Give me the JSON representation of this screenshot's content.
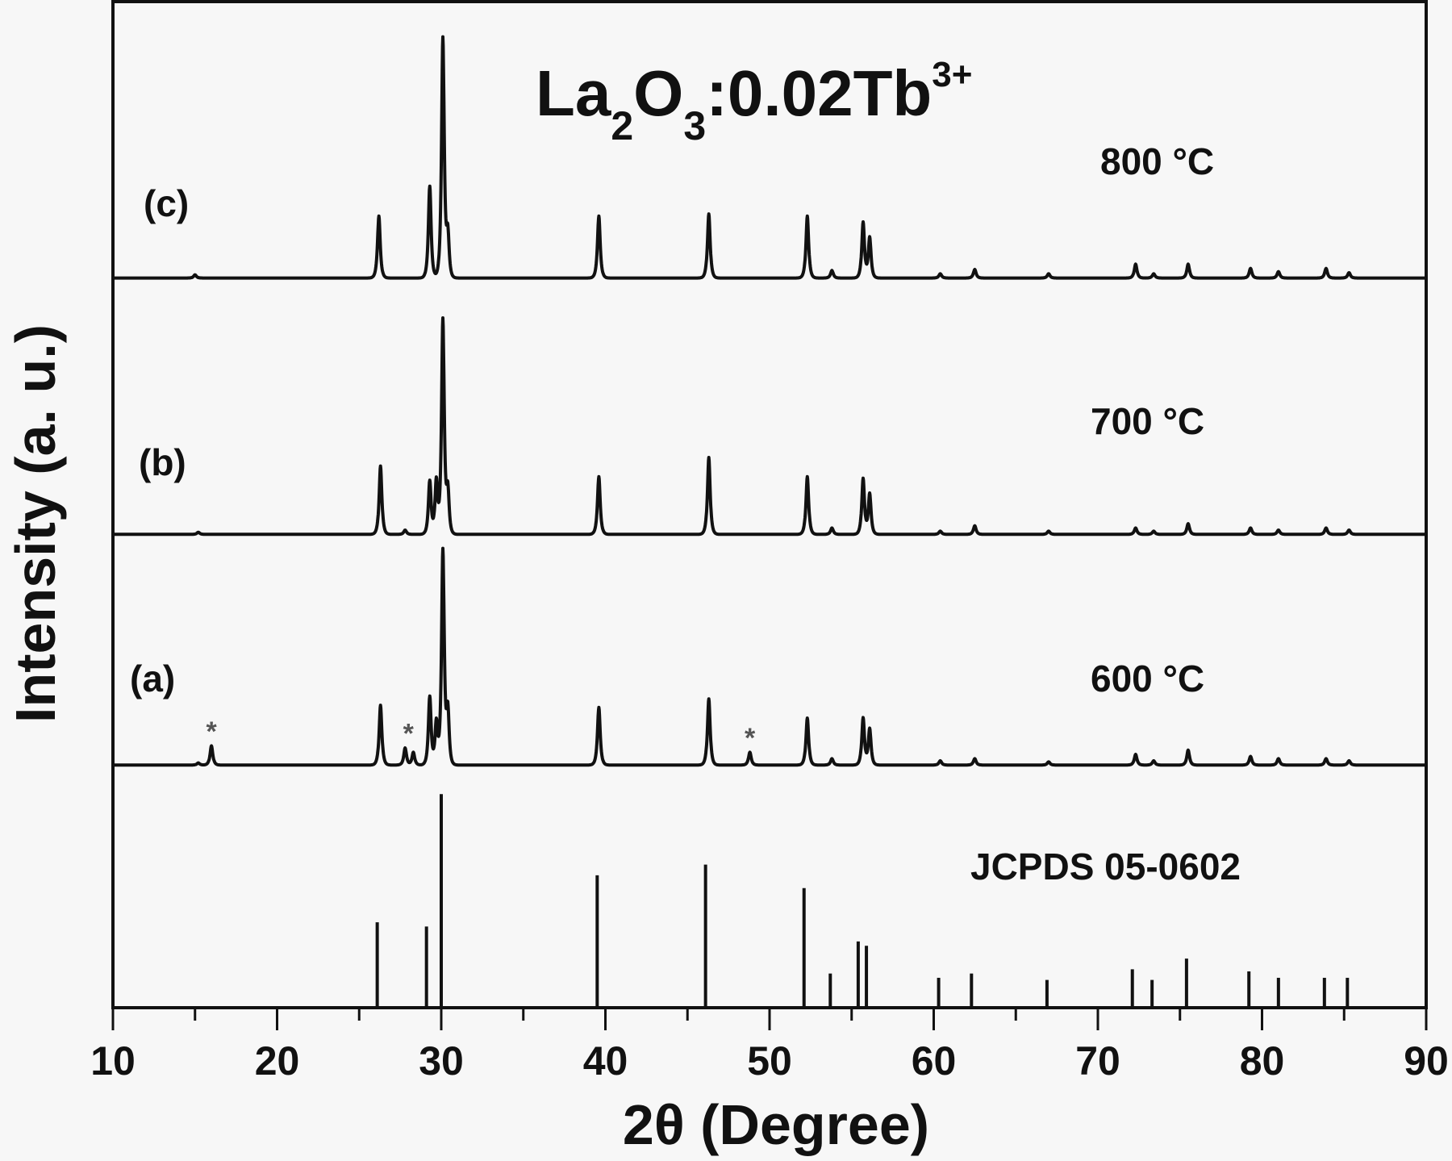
{
  "chart_data": {
    "type": "line",
    "title": {
      "main": "La",
      "sub1": "2",
      "mid": "O",
      "sub2": "3",
      "tail": ":0.02Tb",
      "sup": "3+"
    },
    "xlabel": "2θ (Degree)",
    "ylabel": "Intensity (a. u.)",
    "xlim": [
      10,
      90
    ],
    "ylim": [
      0,
      471
    ],
    "xticks": [
      "10",
      "20",
      "30",
      "40",
      "50",
      "60",
      "70",
      "80",
      "90"
    ],
    "grid": false,
    "y_tick_labels_shown": false,
    "line_color": "#111111",
    "series": [
      {
        "label": "(a)",
        "temperature": "600 °C",
        "offset": 113,
        "peaks": [
          [
            15.2,
            1
          ],
          [
            16.0,
            9
          ],
          [
            26.3,
            28
          ],
          [
            27.8,
            8
          ],
          [
            28.3,
            6
          ],
          [
            29.3,
            32
          ],
          [
            29.7,
            20
          ],
          [
            30.1,
            100
          ],
          [
            30.4,
            25
          ],
          [
            39.6,
            27
          ],
          [
            46.3,
            31
          ],
          [
            48.8,
            6
          ],
          [
            52.3,
            22
          ],
          [
            53.8,
            3
          ],
          [
            55.7,
            22
          ],
          [
            56.1,
            17
          ],
          [
            60.4,
            2
          ],
          [
            62.5,
            3
          ],
          [
            67.0,
            1.5
          ],
          [
            72.3,
            5
          ],
          [
            73.4,
            2
          ],
          [
            75.5,
            7
          ],
          [
            79.3,
            4
          ],
          [
            81.0,
            3
          ],
          [
            83.9,
            3
          ],
          [
            85.3,
            2
          ]
        ],
        "impurity_marks": [
          {
            "x": 16.0,
            "symbol": "*"
          },
          {
            "x": 28.0,
            "symbol": "*"
          },
          {
            "x": 48.8,
            "symbol": "*"
          }
        ]
      },
      {
        "label": "(b)",
        "temperature": "700 °C",
        "offset": 221,
        "peaks": [
          [
            15.2,
            1
          ],
          [
            26.3,
            32
          ],
          [
            27.8,
            2
          ],
          [
            29.3,
            25
          ],
          [
            29.7,
            25
          ],
          [
            30.1,
            100
          ],
          [
            30.4,
            20
          ],
          [
            39.6,
            27
          ],
          [
            46.3,
            36
          ],
          [
            52.3,
            27
          ],
          [
            53.8,
            3
          ],
          [
            55.7,
            26
          ],
          [
            56.1,
            19
          ],
          [
            60.4,
            1.5
          ],
          [
            62.5,
            4
          ],
          [
            67.0,
            1.5
          ],
          [
            72.3,
            3
          ],
          [
            73.4,
            1.5
          ],
          [
            75.5,
            5
          ],
          [
            79.3,
            3
          ],
          [
            81.0,
            2
          ],
          [
            83.9,
            3
          ],
          [
            85.3,
            2
          ]
        ],
        "impurity_marks": []
      },
      {
        "label": "(c)",
        "temperature": "800 °C",
        "offset": 341,
        "peaks": [
          [
            15.0,
            1.5
          ],
          [
            26.2,
            29
          ],
          [
            29.3,
            43
          ],
          [
            30.1,
            112
          ],
          [
            30.4,
            20
          ],
          [
            39.6,
            29
          ],
          [
            46.3,
            30
          ],
          [
            52.3,
            29
          ],
          [
            53.8,
            3.5
          ],
          [
            55.7,
            26
          ],
          [
            56.1,
            19
          ],
          [
            60.4,
            2
          ],
          [
            62.5,
            4
          ],
          [
            67.0,
            2
          ],
          [
            72.3,
            6.5
          ],
          [
            73.4,
            2
          ],
          [
            75.5,
            6.5
          ],
          [
            79.3,
            4.5
          ],
          [
            81.0,
            3
          ],
          [
            83.9,
            4.5
          ],
          [
            85.3,
            2.5
          ]
        ],
        "impurity_marks": []
      }
    ],
    "reference": {
      "label": "JCPDS 05-0602",
      "type": "stick",
      "lines": [
        [
          26.1,
          40
        ],
        [
          29.1,
          38
        ],
        [
          30.0,
          100
        ],
        [
          39.5,
          62
        ],
        [
          46.1,
          67
        ],
        [
          52.1,
          56
        ],
        [
          53.7,
          16
        ],
        [
          55.4,
          31
        ],
        [
          55.9,
          29
        ],
        [
          60.3,
          14
        ],
        [
          62.3,
          16
        ],
        [
          66.9,
          13
        ],
        [
          72.1,
          18
        ],
        [
          73.3,
          13
        ],
        [
          75.4,
          23
        ],
        [
          79.2,
          17
        ],
        [
          81.0,
          14
        ],
        [
          83.8,
          14
        ],
        [
          85.2,
          14
        ]
      ]
    }
  }
}
